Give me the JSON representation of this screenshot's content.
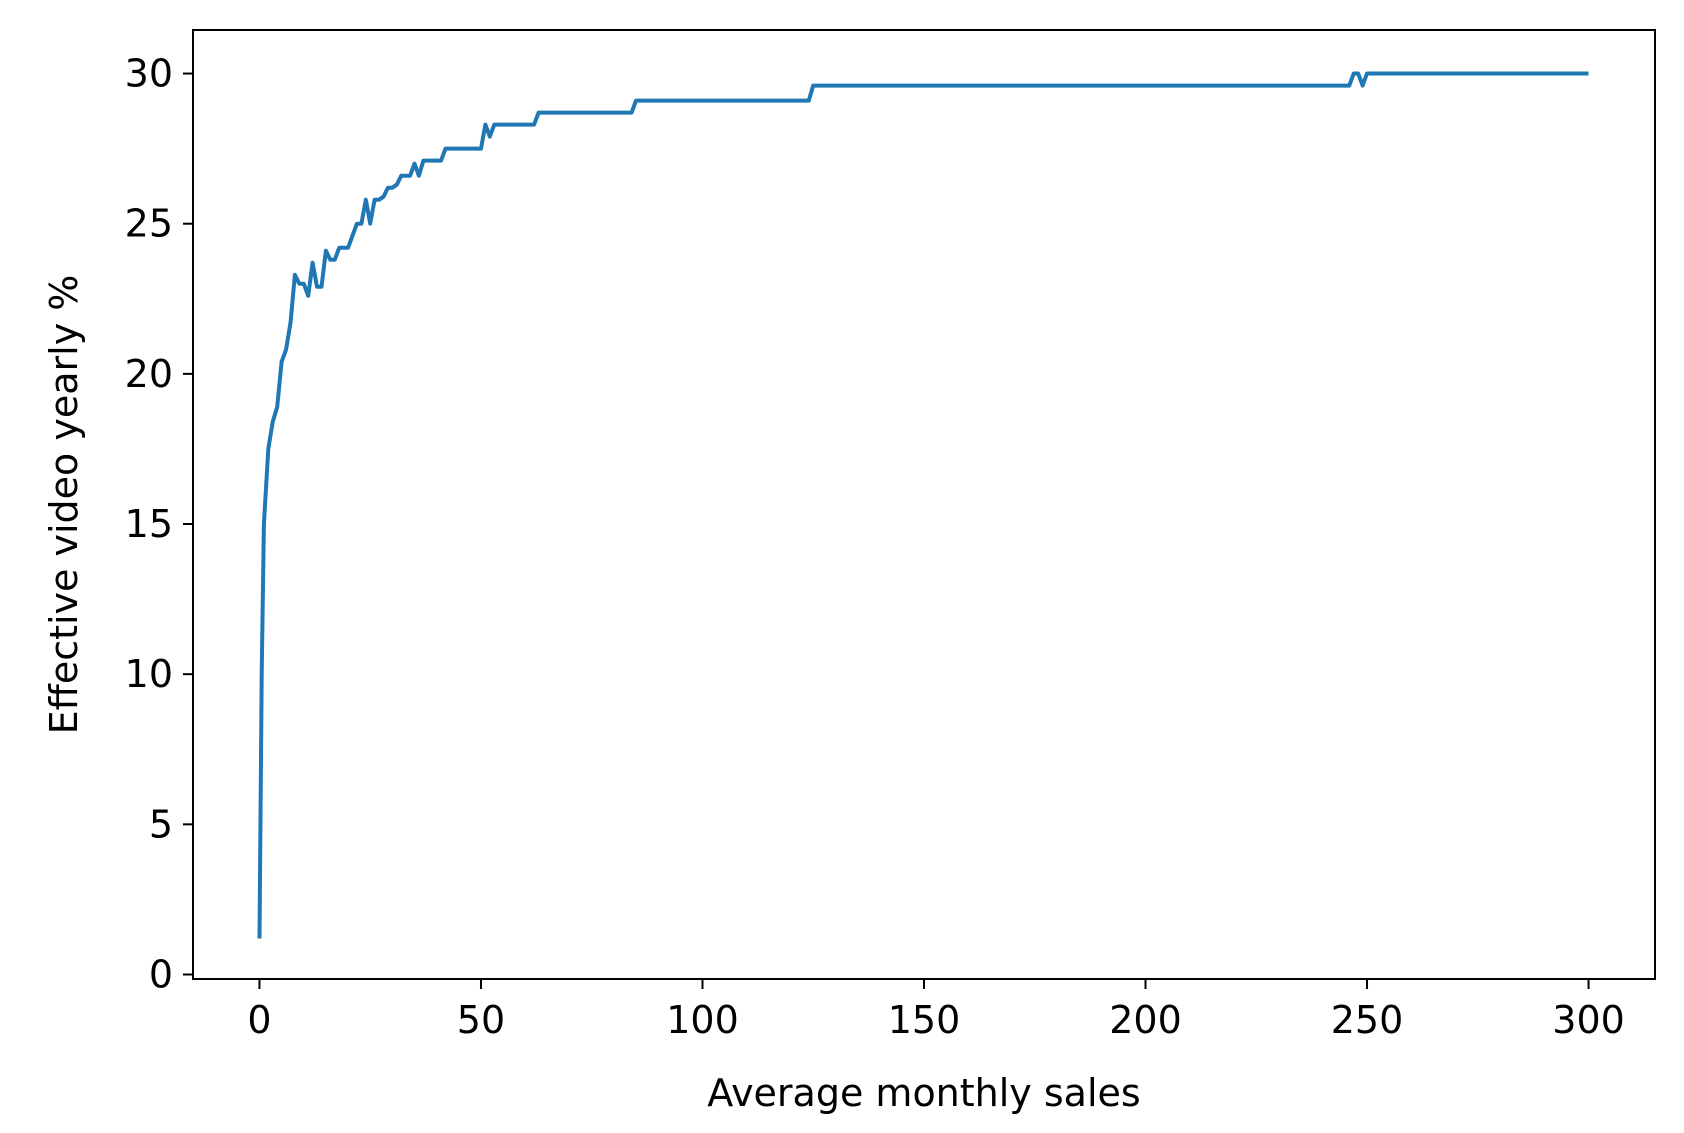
{
  "chart_data": {
    "type": "line",
    "title": "",
    "xlabel": "Average monthly sales",
    "ylabel": "Effective video yearly %",
    "xlim": [
      -15,
      315
    ],
    "ylim": [
      -0.15,
      31.45
    ],
    "xticks": [
      0,
      50,
      100,
      150,
      200,
      250,
      300
    ],
    "yticks": [
      0,
      5,
      10,
      15,
      20,
      25,
      30
    ],
    "grid": false,
    "legend": "none",
    "series": [
      {
        "color": "#1f77b4",
        "x": [
          0,
          0.5,
          1,
          2,
          3,
          4,
          5,
          6,
          7,
          8,
          9,
          10,
          11,
          12,
          13,
          14,
          15,
          16,
          17,
          18,
          19,
          20,
          21,
          22,
          23,
          24,
          25,
          26,
          27,
          28,
          29,
          30,
          31,
          32,
          33,
          34,
          35,
          36,
          37,
          38,
          40,
          41,
          42,
          50,
          51,
          52,
          53,
          62,
          63,
          84,
          85,
          124,
          125,
          246,
          247,
          248,
          249,
          250,
          300
        ],
        "y": [
          1.2,
          10,
          15,
          17.5,
          18.4,
          18.9,
          20.4,
          20.8,
          21.7,
          23.3,
          23.0,
          23.0,
          22.6,
          23.7,
          22.9,
          22.9,
          24.1,
          23.8,
          23.8,
          24.2,
          24.2,
          24.2,
          24.6,
          25.0,
          25.0,
          25.8,
          25.0,
          25.8,
          25.8,
          25.9,
          26.2,
          26.2,
          26.3,
          26.6,
          26.6,
          26.6,
          27.0,
          26.6,
          27.1,
          27.1,
          27.1,
          27.1,
          27.5,
          27.5,
          28.3,
          27.9,
          28.3,
          28.3,
          28.7,
          28.7,
          29.1,
          29.1,
          29.6,
          29.6,
          30.0,
          30.0,
          29.6,
          30.0,
          30.0
        ]
      }
    ]
  }
}
